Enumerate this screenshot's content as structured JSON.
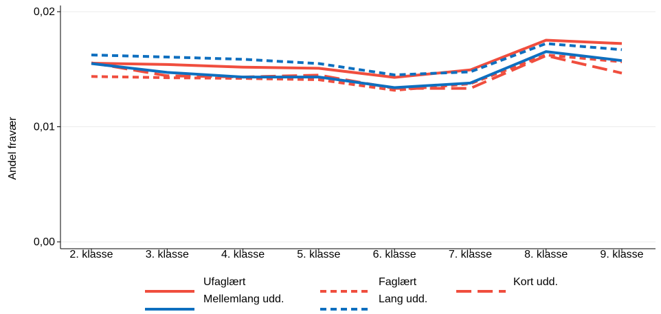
{
  "chart_data": {
    "type": "line",
    "title": "",
    "xlabel": "",
    "ylabel": "Andel fravær",
    "categories": [
      "2. klasse",
      "3. klasse",
      "4. klasse",
      "5. klasse",
      "6. klasse",
      "7. klasse",
      "8. klasse",
      "9. klasse"
    ],
    "ylim": [
      0,
      0.02
    ],
    "yticks": [
      0.0,
      0.01,
      0.02
    ],
    "ytick_labels": [
      "0,00",
      "0,01",
      "0,02"
    ],
    "grid": "horizontal",
    "legend_position": "bottom",
    "series": [
      {
        "name": "Ufaglært",
        "color": "#f04e3e",
        "dash": "solid",
        "values": [
          0.01552,
          0.01541,
          0.01518,
          0.01508,
          0.01429,
          0.01494,
          0.01752,
          0.01723
        ]
      },
      {
        "name": "Faglært",
        "color": "#f04e3e",
        "dash": "short-dash",
        "values": [
          0.01437,
          0.01426,
          0.0142,
          0.01409,
          0.01317,
          0.01374,
          0.01624,
          0.01564
        ]
      },
      {
        "name": "Kort udd.",
        "color": "#f04e3e",
        "dash": "long-dash",
        "values": [
          0.01555,
          0.01443,
          0.01432,
          0.01449,
          0.01334,
          0.01334,
          0.01618,
          0.01466
        ]
      },
      {
        "name": "Mellemlang udd.",
        "color": "#0e6fbf",
        "dash": "solid",
        "values": [
          0.01549,
          0.01472,
          0.01432,
          0.01432,
          0.0134,
          0.0138,
          0.01653,
          0.01575
        ]
      },
      {
        "name": "Lang udd.",
        "color": "#0e6fbf",
        "dash": "short-dash",
        "values": [
          0.01624,
          0.01606,
          0.01586,
          0.01549,
          0.01451,
          0.01477,
          0.01723,
          0.0167
        ]
      }
    ]
  }
}
